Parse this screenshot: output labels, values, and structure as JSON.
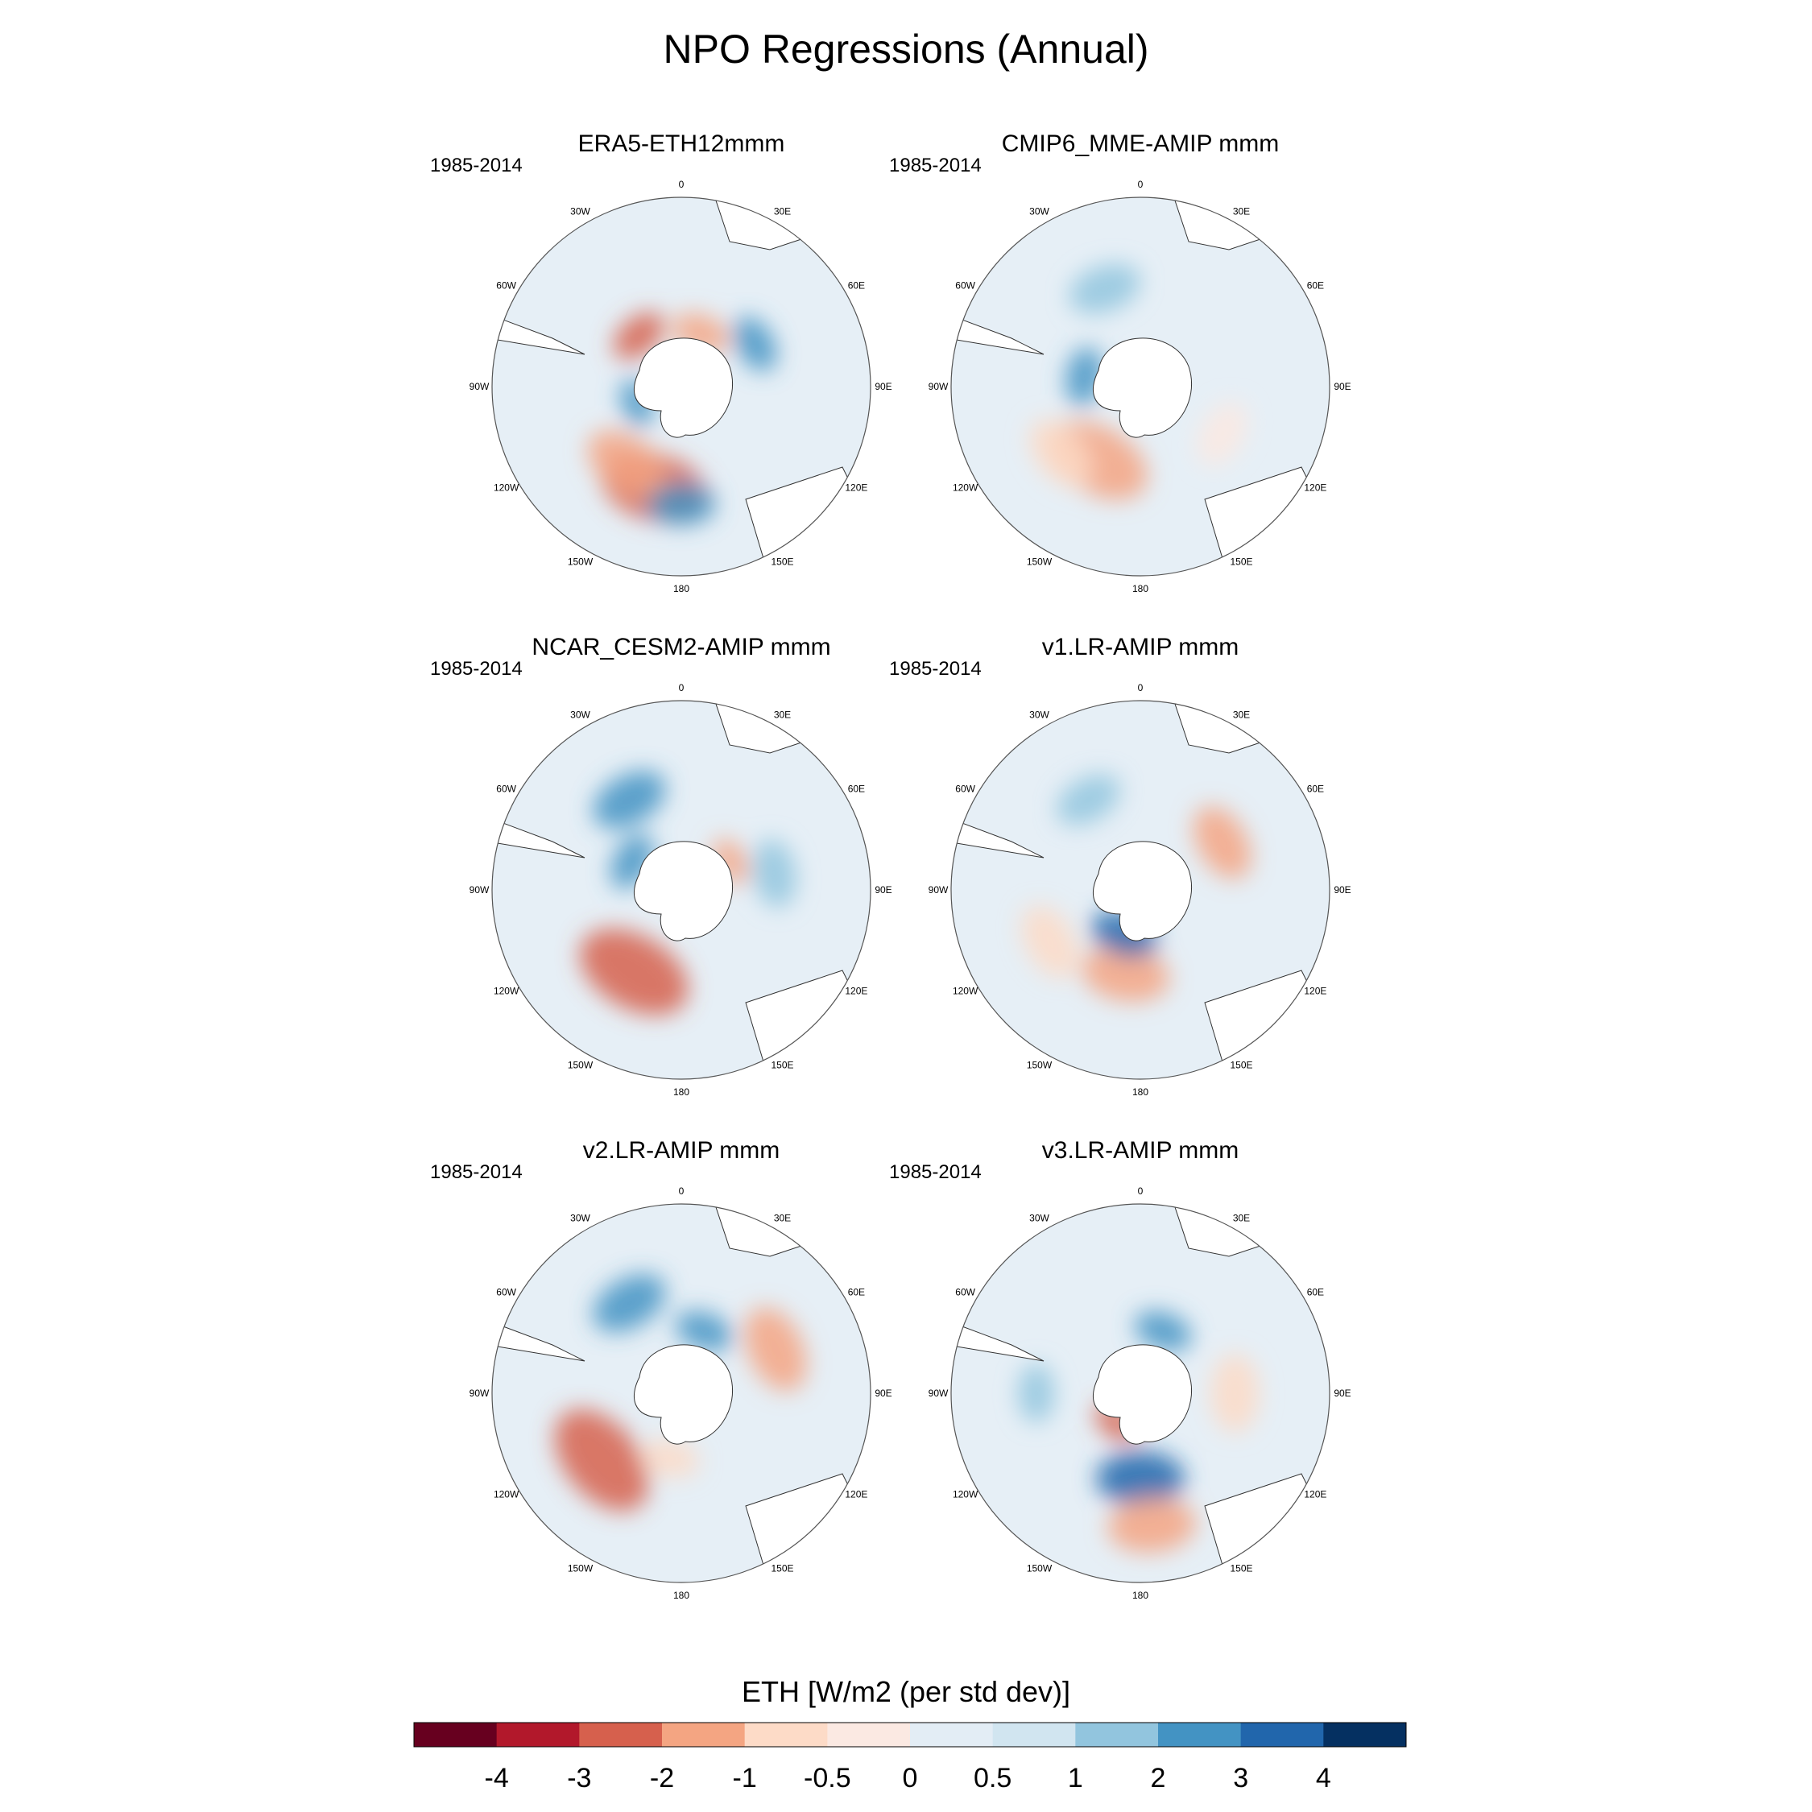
{
  "title": "NPO Regressions (Annual)",
  "chart_data": {
    "type": "heatmap",
    "projection": "south-polar-stereographic",
    "variable_label": "ETH [W/m2 (per std dev)]",
    "colorbar": {
      "boundaries": [
        "-4",
        "-3",
        "-2",
        "-1",
        "-0.5",
        "0",
        "0.5",
        "1",
        "2",
        "3",
        "4"
      ],
      "colors": [
        "#67001f",
        "#b2182b",
        "#d6604d",
        "#f4a582",
        "#fddbc7",
        "#fbe9e2",
        "#e3edf5",
        "#d1e5f0",
        "#92c5de",
        "#4393c3",
        "#2166ac",
        "#053061"
      ]
    },
    "longitude_labels": [
      "0",
      "30E",
      "60E",
      "90E",
      "120E",
      "150E",
      "180",
      "150W",
      "120W",
      "90W",
      "60W",
      "30W"
    ],
    "panels": [
      {
        "title": "ERA5-ETH12mmm",
        "period": "1985-2014",
        "blobs": [
          {
            "angle": 195,
            "radius": 0.55,
            "size": 0.22,
            "value": -3
          },
          {
            "angle": 215,
            "radius": 0.5,
            "size": 0.18,
            "value": -2
          },
          {
            "angle": 180,
            "radius": 0.62,
            "size": 0.14,
            "value": 2
          },
          {
            "angle": 320,
            "radius": 0.35,
            "size": 0.12,
            "value": -3
          },
          {
            "angle": 20,
            "radius": 0.3,
            "size": 0.12,
            "value": -2
          },
          {
            "angle": 60,
            "radius": 0.45,
            "size": 0.12,
            "value": 2
          },
          {
            "angle": 250,
            "radius": 0.25,
            "size": 0.1,
            "value": 2
          }
        ]
      },
      {
        "title": "CMIP6_MME-AMIP  mmm",
        "period": "1985-2014",
        "blobs": [
          {
            "angle": 210,
            "radius": 0.45,
            "size": 0.22,
            "value": -2
          },
          {
            "angle": 230,
            "radius": 0.55,
            "size": 0.16,
            "value": -1
          },
          {
            "angle": 340,
            "radius": 0.55,
            "size": 0.15,
            "value": 1
          },
          {
            "angle": 280,
            "radius": 0.3,
            "size": 0.12,
            "value": 2
          },
          {
            "angle": 120,
            "radius": 0.5,
            "size": 0.14,
            "value": -0.5
          }
        ]
      },
      {
        "title": "NCAR_CESM2-AMIP  mmm",
        "period": "1985-2014",
        "blobs": [
          {
            "angle": 210,
            "radius": 0.5,
            "size": 0.24,
            "value": -3
          },
          {
            "angle": 330,
            "radius": 0.55,
            "size": 0.16,
            "value": 2
          },
          {
            "angle": 300,
            "radius": 0.3,
            "size": 0.12,
            "value": 2
          },
          {
            "angle": 80,
            "radius": 0.5,
            "size": 0.14,
            "value": 1
          },
          {
            "angle": 60,
            "radius": 0.3,
            "size": 0.1,
            "value": -2
          }
        ]
      },
      {
        "title": "v1.LR-AMIP  mmm",
        "period": "1985-2014",
        "blobs": [
          {
            "angle": 190,
            "radius": 0.45,
            "size": 0.18,
            "value": -2
          },
          {
            "angle": 240,
            "radius": 0.55,
            "size": 0.16,
            "value": -1
          },
          {
            "angle": 60,
            "radius": 0.5,
            "size": 0.16,
            "value": -2
          },
          {
            "angle": 200,
            "radius": 0.25,
            "size": 0.14,
            "value": 3
          },
          {
            "angle": 330,
            "radius": 0.55,
            "size": 0.14,
            "value": 1
          }
        ]
      },
      {
        "title": "v2.LR-AMIP  mmm",
        "period": "1985-2014",
        "blobs": [
          {
            "angle": 230,
            "radius": 0.55,
            "size": 0.24,
            "value": -3
          },
          {
            "angle": 65,
            "radius": 0.55,
            "size": 0.18,
            "value": -2
          },
          {
            "angle": 330,
            "radius": 0.55,
            "size": 0.16,
            "value": 2
          },
          {
            "angle": 20,
            "radius": 0.35,
            "size": 0.12,
            "value": 2
          },
          {
            "angle": 190,
            "radius": 0.35,
            "size": 0.12,
            "value": -1
          }
        ]
      },
      {
        "title": "v3.LR-AMIP  mmm",
        "period": "1985-2014",
        "blobs": [
          {
            "angle": 180,
            "radius": 0.45,
            "size": 0.18,
            "value": 3
          },
          {
            "angle": 175,
            "radius": 0.7,
            "size": 0.18,
            "value": -2
          },
          {
            "angle": 90,
            "radius": 0.5,
            "size": 0.16,
            "value": -1
          },
          {
            "angle": 20,
            "radius": 0.35,
            "size": 0.12,
            "value": 2
          },
          {
            "angle": 270,
            "radius": 0.55,
            "size": 0.12,
            "value": 1
          },
          {
            "angle": 220,
            "radius": 0.2,
            "size": 0.1,
            "value": -3
          }
        ]
      }
    ]
  }
}
